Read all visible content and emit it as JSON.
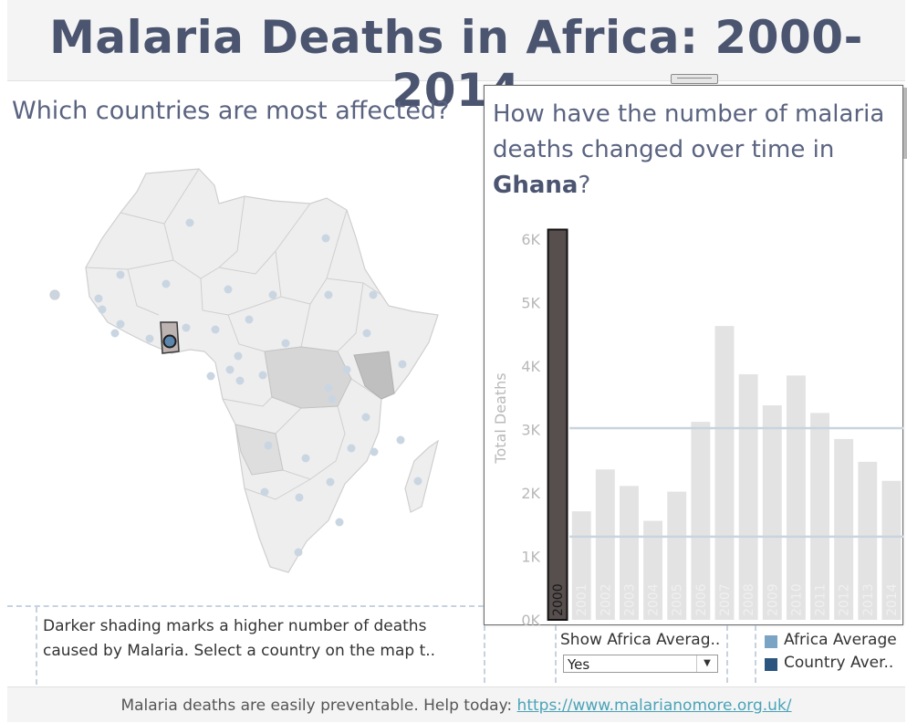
{
  "header": {
    "title": "Malaria Deaths in Africa: 2000-2014"
  },
  "map_panel": {
    "heading": "Which countries are most affected?",
    "selected_country": "Ghana"
  },
  "chart_panel": {
    "heading_prefix": "How have the number of malaria deaths changed over time in ",
    "heading_country": "Ghana",
    "heading_suffix": "?"
  },
  "chart_data": {
    "type": "bar",
    "ylabel": "Total Deaths",
    "xlabel": "",
    "ylim": [
      0,
      6200
    ],
    "y_ticks": [
      "0K",
      "1K",
      "2K",
      "3K",
      "4K",
      "5K",
      "6K"
    ],
    "categories": [
      "2000",
      "2001",
      "2002",
      "2003",
      "2004",
      "2005",
      "2006",
      "2007",
      "2008",
      "2009",
      "2010",
      "2011",
      "2012",
      "2013",
      "2014"
    ],
    "values": [
      6150,
      1710,
      2370,
      2110,
      1560,
      2020,
      3120,
      4630,
      3870,
      3380,
      3850,
      3260,
      2850,
      2490,
      2190
    ],
    "highlighted_category": "2000",
    "reference_lines": [
      {
        "name": "Country Average",
        "value": 3020
      },
      {
        "name": "Africa Average",
        "value": 1310
      }
    ],
    "grid": false,
    "colors": {
      "highlight": "#574e4e",
      "bar": "#e3e3e3",
      "refline": "#c9d4de"
    }
  },
  "caption": {
    "line1": "Darker shading marks a higher number of deaths",
    "line2": "caused by Malaria. Select a country on the map t.."
  },
  "filter": {
    "label": "Show Africa Averag..",
    "selected": "Yes"
  },
  "legend": {
    "items": [
      {
        "label": "Africa Average",
        "color": "#7ba3c4"
      },
      {
        "label": "Country Aver..",
        "color": "#2b557f"
      }
    ]
  },
  "footer": {
    "text": "Malaria deaths are easily preventable. Help today: ",
    "link": "https://www.malarianomore.org.uk/"
  },
  "colors": {
    "title": "#4b5570",
    "heading": "#5a6380",
    "map_land": "#eeeeee",
    "map_border": "#c8c8c8",
    "dot": "#c9d6e2"
  }
}
